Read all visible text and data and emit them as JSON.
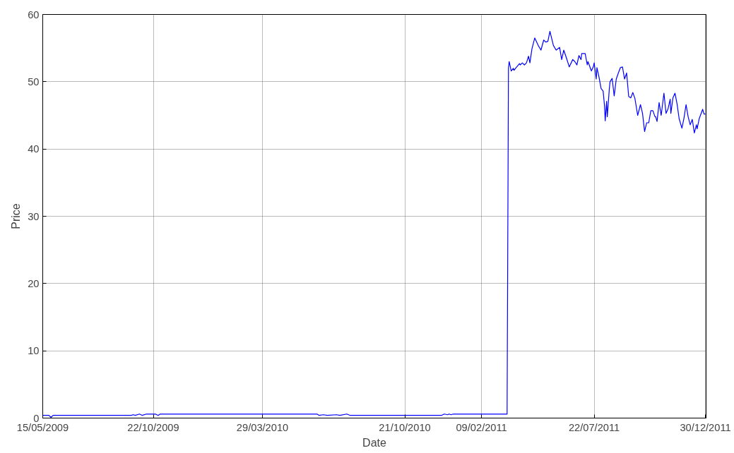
{
  "chart_data": {
    "type": "line",
    "xlabel": "Date",
    "ylabel": "Price",
    "grid": true,
    "xlim": [
      "2009-05-15",
      "2011-12-31"
    ],
    "ylim": [
      0,
      60
    ],
    "xticks": [
      {
        "value": "2009-05-15",
        "label": "15/05/2009"
      },
      {
        "value": "2009-10-22",
        "label": "22/10/2009"
      },
      {
        "value": "2010-03-29",
        "label": "29/03/2010"
      },
      {
        "value": "2010-10-21",
        "label": "21/10/2010"
      },
      {
        "value": "2011-02-09",
        "label": "09/02/2011"
      },
      {
        "value": "2011-07-22",
        "label": "22/07/2011"
      },
      {
        "value": "2011-12-30",
        "label": "30/12/2011"
      }
    ],
    "yticks": [
      0,
      10,
      20,
      30,
      40,
      50,
      60
    ],
    "series": [
      {
        "color": "#0000ff",
        "x": [
          "2009-05-15",
          "2009-05-24",
          "2009-05-27",
          "2009-05-30",
          "2009-09-20",
          "2009-09-23",
          "2009-09-26",
          "2009-10-02",
          "2009-10-06",
          "2009-10-12",
          "2009-10-25",
          "2009-10-29",
          "2009-11-01",
          "2010-06-16",
          "2010-06-19",
          "2010-06-25",
          "2010-07-01",
          "2010-07-14",
          "2010-07-19",
          "2010-07-29",
          "2010-08-03",
          "2010-12-13",
          "2010-12-17",
          "2010-12-22",
          "2010-12-24",
          "2010-12-27",
          "2010-12-30",
          "2011-03-18",
          "2011-03-20",
          "2011-03-21",
          "2011-03-24",
          "2011-03-27",
          "2011-03-28",
          "2011-03-31",
          "2011-04-05",
          "2011-04-06",
          "2011-04-09",
          "2011-04-12",
          "2011-04-15",
          "2011-04-18",
          "2011-04-20",
          "2011-04-23",
          "2011-04-27",
          "2011-05-02",
          "2011-05-06",
          "2011-05-10",
          "2011-05-13",
          "2011-05-16",
          "2011-05-19",
          "2011-05-24",
          "2011-05-28",
          "2011-06-02",
          "2011-06-05",
          "2011-06-08",
          "2011-06-12",
          "2011-06-16",
          "2011-06-21",
          "2011-06-24",
          "2011-06-27",
          "2011-06-30",
          "2011-07-03",
          "2011-07-04",
          "2011-07-09",
          "2011-07-12",
          "2011-07-13",
          "2011-07-18",
          "2011-07-21",
          "2011-07-22",
          "2011-07-25",
          "2011-07-26",
          "2011-07-29",
          "2011-08-01",
          "2011-08-04",
          "2011-08-06",
          "2011-08-07",
          "2011-08-09",
          "2011-08-10",
          "2011-08-13",
          "2011-08-14",
          "2011-08-17",
          "2011-08-20",
          "2011-08-23",
          "2011-08-26",
          "2011-08-29",
          "2011-09-01",
          "2011-09-04",
          "2011-09-07",
          "2011-09-10",
          "2011-09-13",
          "2011-09-16",
          "2011-09-19",
          "2011-09-23",
          "2011-09-27",
          "2011-09-30",
          "2011-10-03",
          "2011-10-06",
          "2011-10-09",
          "2011-10-12",
          "2011-10-15",
          "2011-10-18",
          "2011-10-19",
          "2011-10-21",
          "2011-10-24",
          "2011-10-27",
          "2011-10-31",
          "2011-11-03",
          "2011-11-06",
          "2011-11-09",
          "2011-11-10",
          "2011-11-13",
          "2011-11-16",
          "2011-11-19",
          "2011-11-22",
          "2011-11-26",
          "2011-11-29",
          "2011-12-02",
          "2011-12-05",
          "2011-12-08",
          "2011-12-11",
          "2011-12-14",
          "2011-12-17",
          "2011-12-18",
          "2011-12-21",
          "2011-12-26",
          "2011-12-28",
          "2011-12-30"
        ],
        "values": [
          0.4,
          0.4,
          0.1,
          0.4,
          0.4,
          0.5,
          0.4,
          0.6,
          0.4,
          0.6,
          0.6,
          0.4,
          0.6,
          0.6,
          0.4,
          0.5,
          0.4,
          0.5,
          0.4,
          0.6,
          0.4,
          0.4,
          0.6,
          0.5,
          0.6,
          0.5,
          0.6,
          0.6,
          52.0,
          53.0,
          51.6,
          52.0,
          51.7,
          52.1,
          52.7,
          52.5,
          52.8,
          52.5,
          52.8,
          53.8,
          52.8,
          54.9,
          56.5,
          55.4,
          54.7,
          56.2,
          55.9,
          56.0,
          57.5,
          55.4,
          54.7,
          55.1,
          53.3,
          54.7,
          53.5,
          52.2,
          53.3,
          53.0,
          52.5,
          53.9,
          53.3,
          54.2,
          54.2,
          52.5,
          53.0,
          51.6,
          52.3,
          52.8,
          50.4,
          52.1,
          50.7,
          49.0,
          48.6,
          46.4,
          44.2,
          47.1,
          44.8,
          49.0,
          50.0,
          50.5,
          47.9,
          50.4,
          51.3,
          52.1,
          52.2,
          50.4,
          51.3,
          47.8,
          47.6,
          48.4,
          47.5,
          45.0,
          46.6,
          45.3,
          42.6,
          43.9,
          43.9,
          45.7,
          45.7,
          44.8,
          44.8,
          44.1,
          46.9,
          45.0,
          48.3,
          45.3,
          46.0,
          47.4,
          45.3,
          47.6,
          48.3,
          46.7,
          44.5,
          43.1,
          44.6,
          46.6,
          44.8,
          43.6,
          44.4,
          42.4,
          43.6,
          43.0,
          44.5,
          45.9,
          45.2,
          45.2
        ]
      }
    ]
  }
}
